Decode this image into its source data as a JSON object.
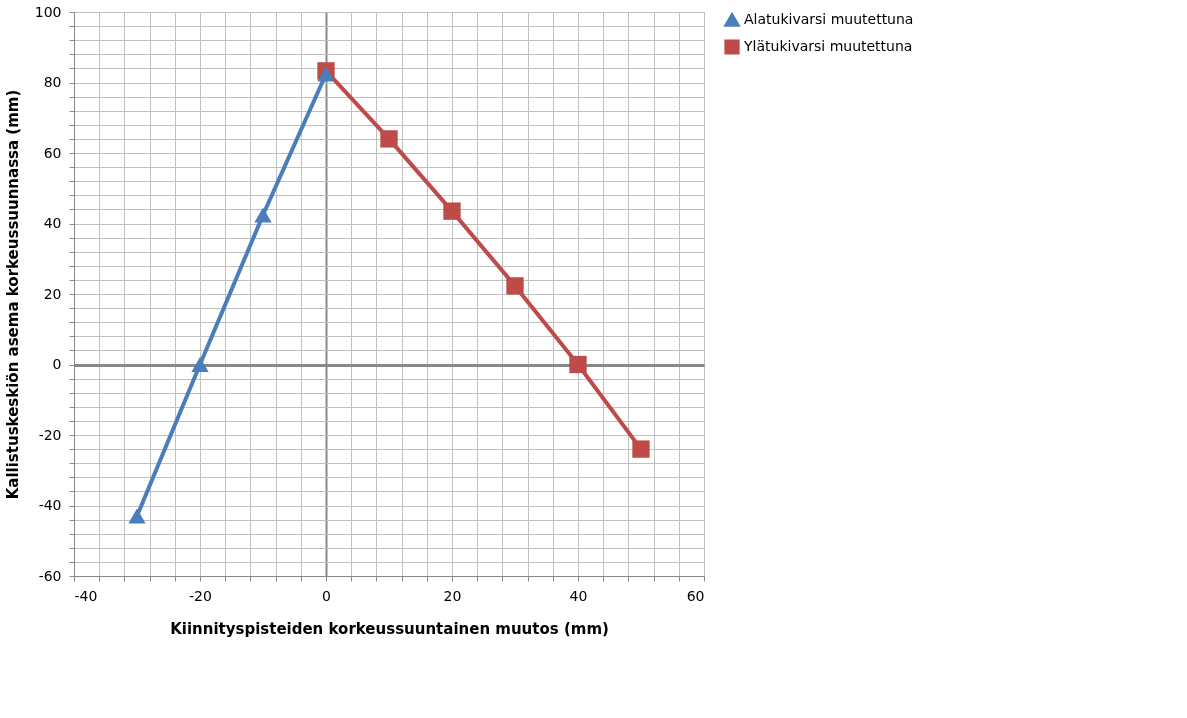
{
  "chart_data": {
    "type": "line",
    "xlabel": "Kiinnityspisteiden korkeussuuntainen muutos (mm)",
    "ylabel": "Kallistuskeskiön asema korkeussuunnassa (mm)",
    "series": [
      {
        "name": "Alatukivarsi muutettuna",
        "color": "#4a7ebb",
        "marker": "triangle",
        "x": [
          -30,
          -20,
          -10,
          0
        ],
        "values": [
          -43,
          0,
          42.4,
          82.4
        ]
      },
      {
        "name": "Ylätukivarsi muutettuna",
        "color": "#be4b48",
        "marker": "square",
        "x": [
          0,
          10,
          20,
          30,
          40,
          50
        ],
        "values": [
          83.3,
          64,
          43.5,
          22.3,
          0,
          -24
        ]
      }
    ],
    "xlim": [
      -40,
      60
    ],
    "xticks": [
      -40,
      {
        "value": -36,
        "label": null
      },
      {
        "value": -32,
        "label": null
      },
      {
        "value": -28,
        "label": null
      },
      {
        "value": -24,
        "label": null
      },
      -20,
      {
        "value": -16,
        "label": null
      },
      {
        "value": -12,
        "label": null
      },
      {
        "value": -8,
        "label": null
      },
      {
        "value": -4,
        "label": null
      },
      0,
      {
        "value": 4,
        "label": null
      },
      {
        "value": 8,
        "label": null
      },
      {
        "value": 12,
        "label": null
      },
      {
        "value": 16,
        "label": null
      },
      20,
      {
        "value": 24,
        "label": null
      },
      {
        "value": 28,
        "label": null
      },
      {
        "value": 32,
        "label": null
      },
      {
        "value": 36,
        "label": null
      },
      40,
      {
        "value": 44,
        "label": null
      },
      {
        "value": 48,
        "label": null
      },
      {
        "value": 52,
        "label": null
      },
      {
        "value": 56,
        "label": null
      },
      60
    ],
    "ylim": [
      -60,
      100
    ],
    "yticks": [
      -60,
      {
        "value": -56,
        "label": null
      },
      {
        "value": -52,
        "label": null
      },
      {
        "value": -48,
        "label": null
      },
      {
        "value": -44,
        "label": null
      },
      -40,
      {
        "value": -36,
        "label": null
      },
      {
        "value": -32,
        "label": null
      },
      {
        "value": -28,
        "label": null
      },
      {
        "value": -24,
        "label": null
      },
      -20,
      {
        "value": -16,
        "label": null
      },
      {
        "value": -12,
        "label": null
      },
      {
        "value": -8,
        "label": null
      },
      {
        "value": -4,
        "label": null
      },
      0,
      {
        "value": 4,
        "label": null
      },
      {
        "value": 8,
        "label": null
      },
      {
        "value": 12,
        "label": null
      },
      {
        "value": 16,
        "label": null
      },
      20,
      {
        "value": 24,
        "label": null
      },
      {
        "value": 28,
        "label": null
      },
      {
        "value": 32,
        "label": null
      },
      {
        "value": 36,
        "label": null
      },
      40,
      {
        "value": 44,
        "label": null
      },
      {
        "value": 48,
        "label": null
      },
      {
        "value": 52,
        "label": null
      },
      {
        "value": 56,
        "label": null
      },
      60,
      {
        "value": 64,
        "label": null
      },
      {
        "value": 68,
        "label": null
      },
      {
        "value": 72,
        "label": null
      },
      {
        "value": 76,
        "label": null
      },
      80,
      {
        "value": 84,
        "label": null
      },
      {
        "value": 88,
        "label": null
      },
      {
        "value": 92,
        "label": null
      },
      {
        "value": 96,
        "label": null
      },
      100
    ],
    "grid": true,
    "legend": "right",
    "line_style": "solid"
  }
}
